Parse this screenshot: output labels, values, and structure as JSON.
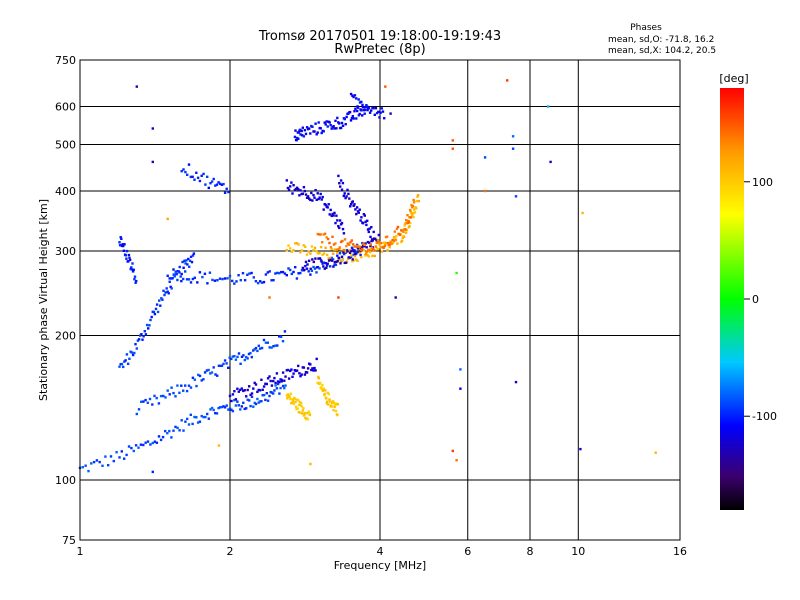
{
  "header": {
    "title_line1": "Tromsø 20170501 19:18:00-19:19:43",
    "title_line2": "RwPretec (8p)"
  },
  "stats": {
    "heading": "Phases",
    "line_o": "mean, sd,O: -71.8, 16.2",
    "line_x": "mean, sd,X: 104.2, 20.5"
  },
  "colorbar": {
    "unit": "[deg]",
    "range": [
      -180,
      180
    ],
    "tick_labels": [
      "100",
      "0",
      "-100"
    ]
  },
  "chart_data": {
    "type": "scatter",
    "title": "Tromsø 20170501 19:18:00-19:19:43",
    "subtitle": "RwPretec (8p)",
    "xlabel": "Frequency [MHz]",
    "ylabel": "Stationary phase Virtual Height [km]",
    "x_scale": "log",
    "y_scale": "log",
    "xlim": [
      1,
      16
    ],
    "ylim": [
      75,
      750
    ],
    "x_ticks": [
      1,
      2,
      4,
      6,
      8,
      10,
      16
    ],
    "x_tick_labels": [
      "1",
      "2",
      "4",
      "6",
      "8",
      "10",
      "16"
    ],
    "y_ticks": [
      75,
      100,
      200,
      300,
      400,
      500,
      600,
      750
    ],
    "y_tick_labels": [
      "75",
      "100",
      "200",
      "300",
      "400",
      "500",
      "600",
      "750"
    ],
    "grid": true,
    "color_variable": "phase [deg]",
    "color_range": [
      -180,
      180
    ],
    "traces": [
      {
        "x": [
          1.0,
          1.2,
          1.4,
          1.6,
          1.8,
          2.0,
          2.2,
          2.4,
          2.6
        ],
        "y": [
          105,
          112,
          120,
          130,
          138,
          142,
          145,
          150,
          160
        ],
        "phase": -90
      },
      {
        "x": [
          1.2,
          1.3,
          1.4,
          1.5,
          1.6,
          1.7
        ],
        "y": [
          170,
          190,
          220,
          250,
          275,
          295
        ],
        "phase": -95
      },
      {
        "x": [
          1.5,
          1.7,
          2.0,
          2.3,
          2.6,
          2.9,
          3.2,
          3.5,
          3.7
        ],
        "y": [
          270,
          265,
          262,
          263,
          268,
          275,
          285,
          297,
          305
        ],
        "phase": -95
      },
      {
        "x": [
          1.3,
          1.5,
          1.7,
          1.9,
          2.1,
          2.3,
          2.6
        ],
        "y": [
          140,
          150,
          160,
          170,
          180,
          190,
          200
        ],
        "phase": -90
      },
      {
        "x": [
          2.0,
          2.2,
          2.4,
          2.6,
          2.8,
          3.0
        ],
        "y": [
          150,
          155,
          160,
          165,
          170,
          175
        ],
        "phase": -120
      },
      {
        "x": [
          3.0,
          3.1,
          3.2,
          3.3
        ],
        "y": [
          160,
          150,
          145,
          140
        ],
        "phase": 100
      },
      {
        "x": [
          2.6,
          2.7,
          2.8,
          2.9
        ],
        "y": [
          150,
          145,
          140,
          136
        ],
        "phase": 100
      },
      {
        "x": [
          2.6,
          2.9,
          3.2,
          3.5,
          3.8,
          4.1,
          4.4,
          4.6,
          4.8
        ],
        "y": [
          305,
          300,
          295,
          293,
          298,
          305,
          320,
          350,
          390
        ],
        "phase": 110
      },
      {
        "x": [
          2.8,
          3.1,
          3.4,
          3.7,
          4.0
        ],
        "y": [
          280,
          282,
          290,
          302,
          320
        ],
        "phase": -130
      },
      {
        "x": [
          3.0,
          3.3,
          3.6,
          3.9,
          4.2,
          4.5,
          4.7
        ],
        "y": [
          320,
          310,
          305,
          305,
          315,
          340,
          380
        ],
        "phase": 140
      },
      {
        "x": [
          2.7,
          2.8,
          3.0,
          3.2,
          3.4,
          3.6,
          3.8
        ],
        "y": [
          520,
          530,
          540,
          550,
          560,
          580,
          600
        ],
        "phase": -110
      },
      {
        "x": [
          2.6,
          2.8,
          3.0,
          3.2,
          3.4
        ],
        "y": [
          410,
          400,
          390,
          360,
          330
        ],
        "phase": -120
      },
      {
        "x": [
          3.3,
          3.5,
          3.7,
          3.9
        ],
        "y": [
          420,
          380,
          350,
          320
        ],
        "phase": -120
      },
      {
        "x": [
          1.6,
          1.8,
          2.0
        ],
        "y": [
          450,
          420,
          400
        ],
        "phase": -100
      },
      {
        "x": [
          1.2,
          1.25,
          1.3
        ],
        "y": [
          320,
          290,
          260
        ],
        "phase": -100
      },
      {
        "x": [
          3.5,
          3.8,
          4.1
        ],
        "y": [
          620,
          600,
          580
        ],
        "phase": -110
      }
    ],
    "points": [
      {
        "x": 1.3,
        "y": 660,
        "phase": -130
      },
      {
        "x": 1.4,
        "y": 540,
        "phase": -120
      },
      {
        "x": 1.4,
        "y": 460,
        "phase": -130
      },
      {
        "x": 1.5,
        "y": 350,
        "phase": 120
      },
      {
        "x": 4.1,
        "y": 660,
        "phase": 150
      },
      {
        "x": 4.2,
        "y": 580,
        "phase": -130
      },
      {
        "x": 4.3,
        "y": 240,
        "phase": -130
      },
      {
        "x": 5.6,
        "y": 510,
        "phase": 150
      },
      {
        "x": 5.6,
        "y": 490,
        "phase": 150
      },
      {
        "x": 5.7,
        "y": 270,
        "phase": 10
      },
      {
        "x": 5.8,
        "y": 170,
        "phase": -80
      },
      {
        "x": 5.8,
        "y": 155,
        "phase": -120
      },
      {
        "x": 5.6,
        "y": 115,
        "phase": 160
      },
      {
        "x": 5.7,
        "y": 110,
        "phase": 140
      },
      {
        "x": 6.5,
        "y": 470,
        "phase": -90
      },
      {
        "x": 6.5,
        "y": 400,
        "phase": 140
      },
      {
        "x": 7.2,
        "y": 680,
        "phase": 160
      },
      {
        "x": 7.4,
        "y": 520,
        "phase": -80
      },
      {
        "x": 7.4,
        "y": 490,
        "phase": -90
      },
      {
        "x": 7.5,
        "y": 390,
        "phase": -90
      },
      {
        "x": 7.5,
        "y": 160,
        "phase": -130
      },
      {
        "x": 8.7,
        "y": 600,
        "phase": -60
      },
      {
        "x": 8.8,
        "y": 460,
        "phase": -130
      },
      {
        "x": 10.2,
        "y": 360,
        "phase": 110
      },
      {
        "x": 10.1,
        "y": 116,
        "phase": -120
      },
      {
        "x": 14.3,
        "y": 114,
        "phase": 110
      },
      {
        "x": 2.9,
        "y": 108,
        "phase": 110
      },
      {
        "x": 1.9,
        "y": 118,
        "phase": 110
      },
      {
        "x": 1.4,
        "y": 104,
        "phase": -100
      },
      {
        "x": 3.3,
        "y": 240,
        "phase": 160
      },
      {
        "x": 2.4,
        "y": 240,
        "phase": 140
      }
    ]
  }
}
